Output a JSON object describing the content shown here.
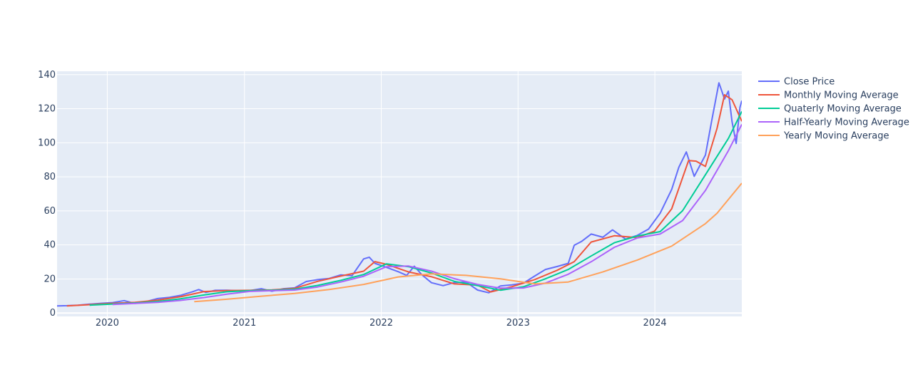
{
  "chart_data": {
    "type": "line",
    "title": "",
    "xlabel": "",
    "ylabel": "",
    "xlim": [
      "2019-08-20",
      "2024-08-20"
    ],
    "ylim": [
      -2,
      142
    ],
    "x_ticks": [
      "2020-01-01",
      "2021-01-01",
      "2022-01-01",
      "2023-01-01",
      "2024-01-01"
    ],
    "x_tick_labels": [
      "2020",
      "2021",
      "2022",
      "2023",
      "2024"
    ],
    "y_ticks": [
      0,
      20,
      40,
      60,
      80,
      100,
      120,
      140
    ],
    "y_tick_labels": [
      "0",
      "20",
      "40",
      "60",
      "80",
      "100",
      "120",
      "140"
    ],
    "grid": true,
    "legend_position": "top-right",
    "series": [
      {
        "name": "Close Price",
        "color": "#636efa",
        "points": [
          [
            "2019-08-20",
            4.2
          ],
          [
            "2019-09-15",
            4.3
          ],
          [
            "2019-10-15",
            4.6
          ],
          [
            "2019-11-15",
            5.2
          ],
          [
            "2019-12-15",
            5.7
          ],
          [
            "2020-01-15",
            6.1
          ],
          [
            "2020-02-15",
            7.3
          ],
          [
            "2020-03-15",
            5.6
          ],
          [
            "2020-04-15",
            6.8
          ],
          [
            "2020-05-15",
            8.5
          ],
          [
            "2020-06-15",
            9.2
          ],
          [
            "2020-07-15",
            10.4
          ],
          [
            "2020-08-15",
            12.5
          ],
          [
            "2020-09-01",
            13.8
          ],
          [
            "2020-09-20",
            12.1
          ],
          [
            "2020-10-15",
            13.3
          ],
          [
            "2020-11-15",
            13.4
          ],
          [
            "2020-12-15",
            13.1
          ],
          [
            "2021-01-15",
            13.2
          ],
          [
            "2021-02-15",
            14.3
          ],
          [
            "2021-03-15",
            12.8
          ],
          [
            "2021-04-15",
            14.3
          ],
          [
            "2021-05-15",
            14.8
          ],
          [
            "2021-06-15",
            18.5
          ],
          [
            "2021-07-15",
            19.6
          ],
          [
            "2021-08-15",
            20.3
          ],
          [
            "2021-09-15",
            22.4
          ],
          [
            "2021-10-15",
            21.9
          ],
          [
            "2021-11-15",
            31.8
          ],
          [
            "2021-11-30",
            32.8
          ],
          [
            "2021-12-15",
            29.2
          ],
          [
            "2022-01-10",
            27.2
          ],
          [
            "2022-02-15",
            24.3
          ],
          [
            "2022-03-10",
            22.1
          ],
          [
            "2022-03-30",
            27.5
          ],
          [
            "2022-04-20",
            22.3
          ],
          [
            "2022-05-15",
            17.8
          ],
          [
            "2022-06-15",
            16.1
          ],
          [
            "2022-07-15",
            17.9
          ],
          [
            "2022-08-15",
            18.2
          ],
          [
            "2022-09-15",
            13.5
          ],
          [
            "2022-10-15",
            11.9
          ],
          [
            "2022-11-15",
            15.9
          ],
          [
            "2022-12-15",
            16.5
          ],
          [
            "2023-01-15",
            17.5
          ],
          [
            "2023-02-15",
            21.8
          ],
          [
            "2023-03-15",
            25.6
          ],
          [
            "2023-04-15",
            27.3
          ],
          [
            "2023-05-15",
            29.2
          ],
          [
            "2023-05-31",
            39.8
          ],
          [
            "2023-06-20",
            42.1
          ],
          [
            "2023-07-15",
            46.4
          ],
          [
            "2023-08-15",
            44.5
          ],
          [
            "2023-09-10",
            48.8
          ],
          [
            "2023-10-15",
            43.4
          ],
          [
            "2023-11-15",
            45.6
          ],
          [
            "2023-12-15",
            49.3
          ],
          [
            "2024-01-15",
            58.6
          ],
          [
            "2024-02-15",
            72.6
          ],
          [
            "2024-03-05",
            85.6
          ],
          [
            "2024-03-25",
            94.6
          ],
          [
            "2024-04-15",
            80.3
          ],
          [
            "2024-05-15",
            92.8
          ],
          [
            "2024-06-01",
            113.4
          ],
          [
            "2024-06-20",
            135.2
          ],
          [
            "2024-07-05",
            125.7
          ],
          [
            "2024-07-15",
            130.3
          ],
          [
            "2024-07-25",
            112.4
          ],
          [
            "2024-08-05",
            99.6
          ],
          [
            "2024-08-15",
            120.8
          ],
          [
            "2024-08-20",
            124.7
          ]
        ]
      },
      {
        "name": "Monthly Moving Average",
        "color": "#ef553b",
        "points": [
          [
            "2019-09-15",
            4.2
          ],
          [
            "2019-11-15",
            4.9
          ],
          [
            "2020-01-15",
            5.7
          ],
          [
            "2020-03-15",
            6.3
          ],
          [
            "2020-05-15",
            7.6
          ],
          [
            "2020-07-15",
            9.6
          ],
          [
            "2020-09-15",
            12.6
          ],
          [
            "2020-11-15",
            13.2
          ],
          [
            "2021-01-15",
            13.3
          ],
          [
            "2021-03-15",
            13.6
          ],
          [
            "2021-05-15",
            14.5
          ],
          [
            "2021-07-15",
            18.6
          ],
          [
            "2021-09-15",
            21.7
          ],
          [
            "2021-11-15",
            24.6
          ],
          [
            "2021-12-15",
            30.2
          ],
          [
            "2022-01-15",
            28.6
          ],
          [
            "2022-03-15",
            24.1
          ],
          [
            "2022-05-15",
            21.3
          ],
          [
            "2022-07-15",
            17.1
          ],
          [
            "2022-09-15",
            16.4
          ],
          [
            "2022-10-20",
            12.4
          ],
          [
            "2022-12-15",
            15.4
          ],
          [
            "2023-02-15",
            19.7
          ],
          [
            "2023-04-15",
            25.1
          ],
          [
            "2023-05-31",
            30.2
          ],
          [
            "2023-07-15",
            41.7
          ],
          [
            "2023-09-15",
            45.4
          ],
          [
            "2023-11-15",
            44.3
          ],
          [
            "2023-12-31",
            48.1
          ],
          [
            "2024-02-15",
            61.2
          ],
          [
            "2024-03-31",
            89.6
          ],
          [
            "2024-04-20",
            89.2
          ],
          [
            "2024-05-15",
            86.1
          ],
          [
            "2024-06-15",
            108.5
          ],
          [
            "2024-07-05",
            128.2
          ],
          [
            "2024-07-25",
            125.3
          ],
          [
            "2024-08-20",
            112.6
          ]
        ]
      },
      {
        "name": "Quaterly Moving Average",
        "color": "#00cc96",
        "points": [
          [
            "2019-11-15",
            4.6
          ],
          [
            "2020-01-15",
            5.3
          ],
          [
            "2020-03-15",
            5.9
          ],
          [
            "2020-05-15",
            6.8
          ],
          [
            "2020-07-15",
            8.4
          ],
          [
            "2020-09-15",
            10.6
          ],
          [
            "2020-11-15",
            12.5
          ],
          [
            "2021-01-15",
            13.1
          ],
          [
            "2021-03-15",
            13.4
          ],
          [
            "2021-05-15",
            14.0
          ],
          [
            "2021-07-15",
            16.2
          ],
          [
            "2021-09-15",
            19.2
          ],
          [
            "2021-11-15",
            22.6
          ],
          [
            "2022-01-15",
            28.9
          ],
          [
            "2022-03-15",
            27.2
          ],
          [
            "2022-05-15",
            23.5
          ],
          [
            "2022-07-15",
            18.6
          ],
          [
            "2022-09-15",
            16.1
          ],
          [
            "2022-11-15",
            13.4
          ],
          [
            "2023-01-15",
            15.4
          ],
          [
            "2023-03-15",
            20.1
          ],
          [
            "2023-05-15",
            25.6
          ],
          [
            "2023-07-15",
            33.5
          ],
          [
            "2023-09-15",
            41.3
          ],
          [
            "2023-11-15",
            45.2
          ],
          [
            "2024-01-15",
            47.8
          ],
          [
            "2024-03-15",
            60.1
          ],
          [
            "2024-05-15",
            81.2
          ],
          [
            "2024-07-15",
            102.5
          ],
          [
            "2024-08-20",
            118.4
          ]
        ]
      },
      {
        "name": "Half-Yearly Moving Average",
        "color": "#ab63fa",
        "points": [
          [
            "2020-01-15",
            5.0
          ],
          [
            "2020-03-15",
            5.6
          ],
          [
            "2020-05-15",
            6.3
          ],
          [
            "2020-07-15",
            7.4
          ],
          [
            "2020-09-15",
            9.1
          ],
          [
            "2020-11-15",
            11.1
          ],
          [
            "2021-01-15",
            12.7
          ],
          [
            "2021-03-15",
            13.1
          ],
          [
            "2021-05-15",
            13.5
          ],
          [
            "2021-07-15",
            15.3
          ],
          [
            "2021-09-15",
            18.2
          ],
          [
            "2021-11-15",
            21.6
          ],
          [
            "2022-01-15",
            27.2
          ],
          [
            "2022-03-15",
            27.6
          ],
          [
            "2022-05-15",
            24.6
          ],
          [
            "2022-07-15",
            20.2
          ],
          [
            "2022-09-15",
            16.8
          ],
          [
            "2022-11-15",
            14.6
          ],
          [
            "2023-01-15",
            14.7
          ],
          [
            "2023-03-15",
            17.6
          ],
          [
            "2023-05-15",
            22.8
          ],
          [
            "2023-07-15",
            30.1
          ],
          [
            "2023-09-15",
            38.6
          ],
          [
            "2023-11-15",
            44.1
          ],
          [
            "2024-01-15",
            46.4
          ],
          [
            "2024-03-15",
            54.3
          ],
          [
            "2024-05-15",
            72.0
          ],
          [
            "2024-07-15",
            95.3
          ],
          [
            "2024-08-20",
            110.8
          ]
        ]
      },
      {
        "name": "Yearly Moving Average",
        "color": "#ffa15a",
        "points": [
          [
            "2020-08-20",
            6.7
          ],
          [
            "2020-11-15",
            8.1
          ],
          [
            "2021-02-15",
            9.9
          ],
          [
            "2021-05-15",
            11.5
          ],
          [
            "2021-08-15",
            13.8
          ],
          [
            "2021-11-15",
            16.8
          ],
          [
            "2022-02-15",
            21.2
          ],
          [
            "2022-05-15",
            23.0
          ],
          [
            "2022-08-15",
            22.1
          ],
          [
            "2022-11-15",
            20.1
          ],
          [
            "2023-02-15",
            17.1
          ],
          [
            "2023-05-15",
            18.2
          ],
          [
            "2023-08-15",
            24.1
          ],
          [
            "2023-11-15",
            31.1
          ],
          [
            "2024-02-15",
            39.3
          ],
          [
            "2024-05-15",
            52.5
          ],
          [
            "2024-06-15",
            58.6
          ],
          [
            "2024-08-20",
            76.3
          ]
        ]
      }
    ]
  }
}
